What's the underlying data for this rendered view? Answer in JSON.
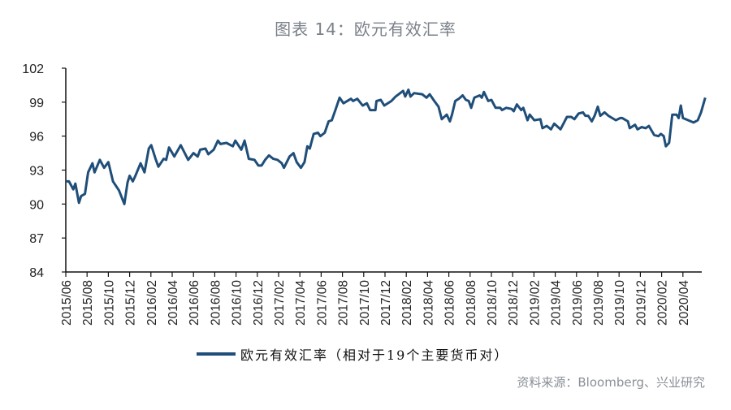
{
  "header": {
    "title": "图表 14：欧元有效汇率"
  },
  "legend": {
    "label": "欧元有效汇率（相对于19个主要货币对）"
  },
  "footer": {
    "source": "资料来源：Bloomberg、兴业研究"
  },
  "chart_data": {
    "type": "line",
    "title": "图表 14：欧元有效汇率",
    "xlabel": "",
    "ylabel": "",
    "ylim": [
      84,
      102
    ],
    "yticks": [
      84,
      87,
      90,
      93,
      96,
      99,
      102
    ],
    "xlim": [
      "2015-06-01",
      "2020-07-01"
    ],
    "xticks": [
      "2015/06",
      "2015/08",
      "2015/10",
      "2015/12",
      "2016/02",
      "2016/04",
      "2016/06",
      "2016/08",
      "2016/10",
      "2016/12",
      "2017/02",
      "2017/04",
      "2017/06",
      "2017/08",
      "2017/10",
      "2017/12",
      "2018/02",
      "2018/04",
      "2018/06",
      "2018/08",
      "2018/10",
      "2018/12",
      "2019/02",
      "2019/04",
      "2019/06",
      "2019/08",
      "2019/10",
      "2019/12",
      "2020/02",
      "2020/04"
    ],
    "grid": false,
    "legend_position": "bottom",
    "color": "#1f4e79",
    "series": [
      {
        "name": "欧元有效汇率（相对于19个主要货币对）",
        "points": [
          [
            "2015-06-01",
            92.0
          ],
          [
            "2015-06-10",
            92.0
          ],
          [
            "2015-06-22",
            91.3
          ],
          [
            "2015-06-28",
            91.8
          ],
          [
            "2015-07-08",
            90.1
          ],
          [
            "2015-07-14",
            90.7
          ],
          [
            "2015-07-25",
            90.9
          ],
          [
            "2015-08-04",
            92.8
          ],
          [
            "2015-08-16",
            93.6
          ],
          [
            "2015-08-22",
            92.8
          ],
          [
            "2015-09-07",
            93.9
          ],
          [
            "2015-09-19",
            93.2
          ],
          [
            "2015-10-01",
            93.7
          ],
          [
            "2015-10-14",
            92.0
          ],
          [
            "2015-11-01",
            91.2
          ],
          [
            "2015-11-16",
            90.0
          ],
          [
            "2015-11-25",
            91.9
          ],
          [
            "2015-12-01",
            92.5
          ],
          [
            "2015-12-10",
            92.0
          ],
          [
            "2015-12-16",
            92.4
          ],
          [
            "2016-01-02",
            93.6
          ],
          [
            "2016-01-13",
            92.8
          ],
          [
            "2016-01-25",
            94.9
          ],
          [
            "2016-02-02",
            95.2
          ],
          [
            "2016-02-14",
            94.0
          ],
          [
            "2016-02-22",
            93.3
          ],
          [
            "2016-03-07",
            94.0
          ],
          [
            "2016-03-14",
            93.9
          ],
          [
            "2016-03-22",
            95.0
          ],
          [
            "2016-04-07",
            94.2
          ],
          [
            "2016-04-25",
            95.2
          ],
          [
            "2016-05-16",
            93.9
          ],
          [
            "2016-06-01",
            94.5
          ],
          [
            "2016-06-13",
            94.2
          ],
          [
            "2016-06-20",
            94.8
          ],
          [
            "2016-07-05",
            94.9
          ],
          [
            "2016-07-13",
            94.4
          ],
          [
            "2016-07-28",
            94.8
          ],
          [
            "2016-08-10",
            95.6
          ],
          [
            "2016-08-17",
            95.3
          ],
          [
            "2016-09-04",
            95.4
          ],
          [
            "2016-09-22",
            95.1
          ],
          [
            "2016-09-29",
            95.6
          ],
          [
            "2016-10-16",
            94.8
          ],
          [
            "2016-10-25",
            95.6
          ],
          [
            "2016-11-07",
            94.0
          ],
          [
            "2016-11-23",
            93.9
          ],
          [
            "2016-12-04",
            93.4
          ],
          [
            "2016-12-13",
            93.4
          ],
          [
            "2016-12-23",
            93.9
          ],
          [
            "2017-01-04",
            94.3
          ],
          [
            "2017-01-16",
            94.0
          ],
          [
            "2017-01-28",
            93.9
          ],
          [
            "2017-02-10",
            93.6
          ],
          [
            "2017-02-16",
            93.2
          ],
          [
            "2017-03-02",
            94.2
          ],
          [
            "2017-03-13",
            94.5
          ],
          [
            "2017-03-22",
            93.7
          ],
          [
            "2017-04-04",
            93.2
          ],
          [
            "2017-04-14",
            93.7
          ],
          [
            "2017-04-22",
            95.1
          ],
          [
            "2017-04-29",
            94.9
          ],
          [
            "2017-05-10",
            96.2
          ],
          [
            "2017-05-22",
            96.3
          ],
          [
            "2017-05-29",
            96.0
          ],
          [
            "2017-06-11",
            96.3
          ],
          [
            "2017-06-22",
            97.3
          ],
          [
            "2017-07-01",
            97.4
          ],
          [
            "2017-07-11",
            98.3
          ],
          [
            "2017-07-23",
            99.4
          ],
          [
            "2017-08-04",
            98.9
          ],
          [
            "2017-08-25",
            99.3
          ],
          [
            "2017-09-01",
            99.1
          ],
          [
            "2017-09-13",
            99.3
          ],
          [
            "2017-09-28",
            98.7
          ],
          [
            "2017-10-10",
            98.9
          ],
          [
            "2017-10-19",
            98.3
          ],
          [
            "2017-11-04",
            98.3
          ],
          [
            "2017-11-07",
            99.1
          ],
          [
            "2017-11-19",
            99.2
          ],
          [
            "2017-11-29",
            98.7
          ],
          [
            "2017-12-19",
            99.1
          ],
          [
            "2018-01-01",
            99.5
          ],
          [
            "2018-01-22",
            100.0
          ],
          [
            "2018-01-28",
            99.5
          ],
          [
            "2018-02-07",
            100.1
          ],
          [
            "2018-02-13",
            99.5
          ],
          [
            "2018-02-23",
            99.8
          ],
          [
            "2018-03-16",
            99.7
          ],
          [
            "2018-03-28",
            99.4
          ],
          [
            "2018-04-07",
            99.7
          ],
          [
            "2018-04-20",
            99.1
          ],
          [
            "2018-05-02",
            98.6
          ],
          [
            "2018-05-11",
            97.5
          ],
          [
            "2018-05-25",
            97.9
          ],
          [
            "2018-06-04",
            97.3
          ],
          [
            "2018-06-10",
            97.9
          ],
          [
            "2018-06-19",
            99.1
          ],
          [
            "2018-06-29",
            99.3
          ],
          [
            "2018-07-10",
            99.6
          ],
          [
            "2018-07-19",
            99.2
          ],
          [
            "2018-07-27",
            99.1
          ],
          [
            "2018-08-04",
            98.5
          ],
          [
            "2018-08-13",
            99.4
          ],
          [
            "2018-08-28",
            99.6
          ],
          [
            "2018-09-04",
            99.4
          ],
          [
            "2018-09-10",
            99.9
          ],
          [
            "2018-09-22",
            99.1
          ],
          [
            "2018-10-01",
            99.2
          ],
          [
            "2018-10-13",
            98.5
          ],
          [
            "2018-10-26",
            98.5
          ],
          [
            "2018-11-01",
            98.3
          ],
          [
            "2018-11-13",
            98.5
          ],
          [
            "2018-11-28",
            98.4
          ],
          [
            "2018-12-04",
            98.2
          ],
          [
            "2018-12-13",
            98.8
          ],
          [
            "2018-12-25",
            98.3
          ],
          [
            "2019-01-01",
            98.5
          ],
          [
            "2019-01-13",
            97.4
          ],
          [
            "2019-01-19",
            97.9
          ],
          [
            "2019-02-02",
            97.4
          ],
          [
            "2019-02-19",
            97.5
          ],
          [
            "2019-02-25",
            96.7
          ],
          [
            "2019-03-07",
            96.9
          ],
          [
            "2019-03-19",
            96.6
          ],
          [
            "2019-03-28",
            97.1
          ],
          [
            "2019-04-16",
            96.6
          ],
          [
            "2019-05-04",
            97.7
          ],
          [
            "2019-05-16",
            97.7
          ],
          [
            "2019-05-25",
            97.5
          ],
          [
            "2019-06-07",
            98.0
          ],
          [
            "2019-06-19",
            98.1
          ],
          [
            "2019-06-26",
            97.8
          ],
          [
            "2019-07-04",
            97.8
          ],
          [
            "2019-07-14",
            97.3
          ],
          [
            "2019-07-22",
            97.8
          ],
          [
            "2019-08-01",
            98.6
          ],
          [
            "2019-08-08",
            97.8
          ],
          [
            "2019-08-20",
            98.1
          ],
          [
            "2019-09-01",
            97.8
          ],
          [
            "2019-09-22",
            97.4
          ],
          [
            "2019-10-04",
            97.6
          ],
          [
            "2019-10-10",
            97.6
          ],
          [
            "2019-10-26",
            97.3
          ],
          [
            "2019-11-01",
            96.7
          ],
          [
            "2019-11-16",
            97.0
          ],
          [
            "2019-11-23",
            96.6
          ],
          [
            "2019-12-05",
            96.8
          ],
          [
            "2019-12-16",
            96.7
          ],
          [
            "2019-12-25",
            96.9
          ],
          [
            "2020-01-10",
            96.1
          ],
          [
            "2020-01-22",
            96.0
          ],
          [
            "2020-01-29",
            96.2
          ],
          [
            "2020-02-07",
            96.0
          ],
          [
            "2020-02-13",
            95.1
          ],
          [
            "2020-02-22",
            95.4
          ],
          [
            "2020-03-01",
            97.9
          ],
          [
            "2020-03-13",
            97.9
          ],
          [
            "2020-03-19",
            97.6
          ],
          [
            "2020-03-25",
            98.7
          ],
          [
            "2020-04-01",
            97.6
          ],
          [
            "2020-04-16",
            97.4
          ],
          [
            "2020-05-01",
            97.2
          ],
          [
            "2020-05-13",
            97.4
          ],
          [
            "2020-05-22",
            98.1
          ],
          [
            "2020-06-04",
            99.4
          ]
        ]
      }
    ]
  }
}
